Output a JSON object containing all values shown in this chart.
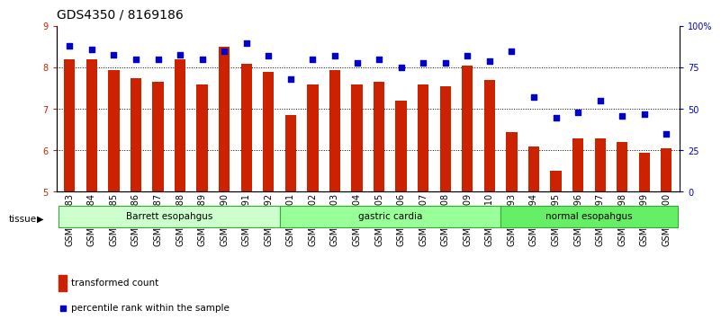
{
  "title": "GDS4350 / 8169186",
  "samples": [
    "GSM851983",
    "GSM851984",
    "GSM851985",
    "GSM851986",
    "GSM851987",
    "GSM851988",
    "GSM851989",
    "GSM851990",
    "GSM851991",
    "GSM851992",
    "GSM852001",
    "GSM852002",
    "GSM852003",
    "GSM852004",
    "GSM852005",
    "GSM852006",
    "GSM852007",
    "GSM852008",
    "GSM852009",
    "GSM852010",
    "GSM851993",
    "GSM851994",
    "GSM851995",
    "GSM851996",
    "GSM851997",
    "GSM851998",
    "GSM851999",
    "GSM852000"
  ],
  "bar_values": [
    8.2,
    8.2,
    7.95,
    7.75,
    7.65,
    8.2,
    7.6,
    8.5,
    8.1,
    7.9,
    6.85,
    7.6,
    7.95,
    7.6,
    7.65,
    7.2,
    7.6,
    7.55,
    8.05,
    7.7,
    6.45,
    6.1,
    5.5,
    6.3,
    6.3,
    6.2,
    5.95,
    6.05
  ],
  "dot_values": [
    88,
    86,
    83,
    80,
    80,
    83,
    80,
    85,
    90,
    82,
    68,
    80,
    82,
    78,
    80,
    75,
    78,
    78,
    82,
    79,
    85,
    57,
    45,
    48,
    55,
    46,
    47,
    35
  ],
  "groups": [
    {
      "label": "Barrett esopahgus",
      "start": 0,
      "end": 9,
      "color": "#ccffcc"
    },
    {
      "label": "gastric cardia",
      "start": 10,
      "end": 19,
      "color": "#99ff99"
    },
    {
      "label": "normal esopahgus",
      "start": 20,
      "end": 27,
      "color": "#66ee66"
    }
  ],
  "bar_color": "#cc2200",
  "dot_color": "#0000cc",
  "ylim_left": [
    5,
    9
  ],
  "ylim_right": [
    0,
    100
  ],
  "yticks_left": [
    5,
    6,
    7,
    8,
    9
  ],
  "ytick_labels_right": [
    "0",
    "25",
    "50",
    "75",
    "100%"
  ],
  "grid_values": [
    6,
    7,
    8
  ],
  "title_fontsize": 10,
  "tick_fontsize": 7,
  "background_color": "#ffffff"
}
